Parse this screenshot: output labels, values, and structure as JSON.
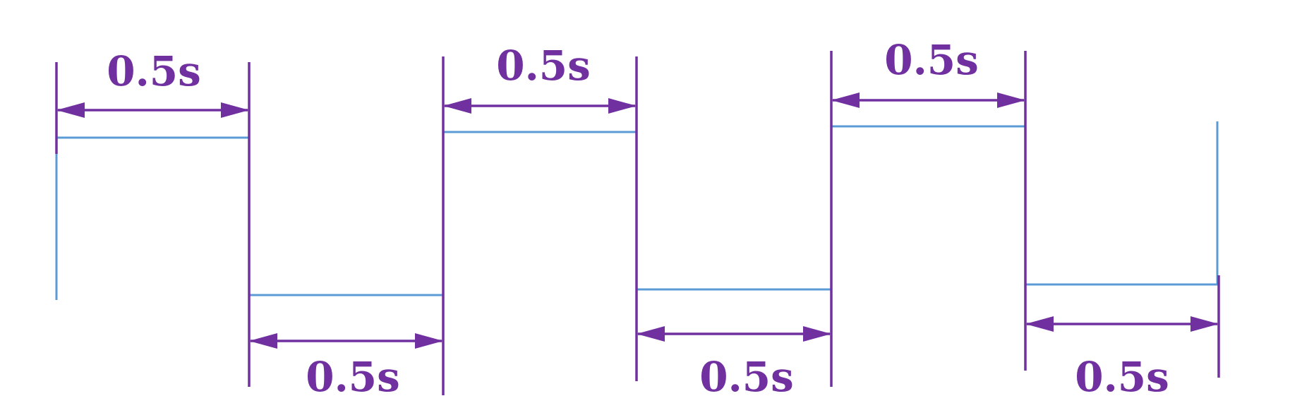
{
  "colors": {
    "wave": "#5b9bd5",
    "annotation": "#7030a0"
  },
  "intervals": [
    {
      "label": "0.5s"
    },
    {
      "label": "0.5s"
    },
    {
      "label": "0.5s"
    },
    {
      "label": "0.5s"
    },
    {
      "label": "0.5s"
    },
    {
      "label": "0.5s"
    }
  ]
}
